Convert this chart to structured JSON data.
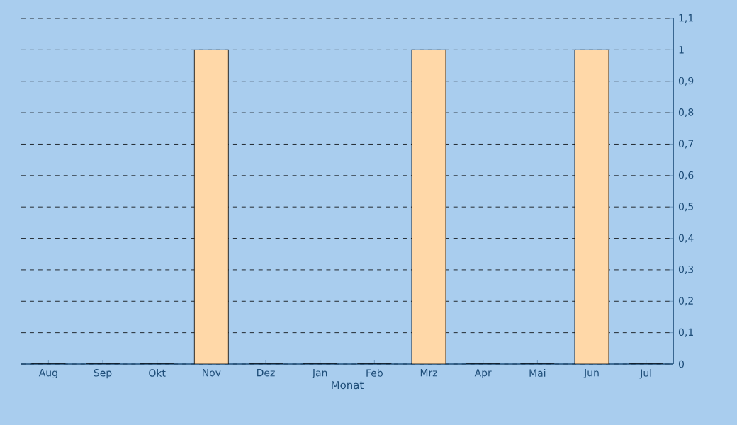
{
  "chart_data": {
    "type": "bar",
    "xlabel": "Monat",
    "categories": [
      "Aug",
      "Sep",
      "Okt",
      "Nov",
      "Dez",
      "Jan",
      "Feb",
      "Mrz",
      "Apr",
      "Mai",
      "Jun",
      "Jul"
    ],
    "values": [
      0,
      0,
      0,
      1,
      0,
      0,
      0,
      1,
      0,
      0,
      1,
      0
    ],
    "color": "#ffd8a8",
    "ylim": [
      0,
      1.1
    ],
    "yticks": [
      0,
      {
        "value": 0.1,
        "label": "0,1"
      },
      {
        "value": 0.2,
        "label": "0,2"
      },
      {
        "value": 0.3,
        "label": "0,3"
      },
      {
        "value": 0.4,
        "label": "0,4"
      },
      {
        "value": 0.5,
        "label": "0,5"
      },
      {
        "value": 0.6,
        "label": "0,6"
      },
      {
        "value": 0.7,
        "label": "0,7"
      },
      {
        "value": 0.8,
        "label": "0,8"
      },
      {
        "value": 0.9,
        "label": "0,9"
      },
      1,
      {
        "value": 1.1,
        "label": "1,1"
      }
    ],
    "grid": "y"
  }
}
